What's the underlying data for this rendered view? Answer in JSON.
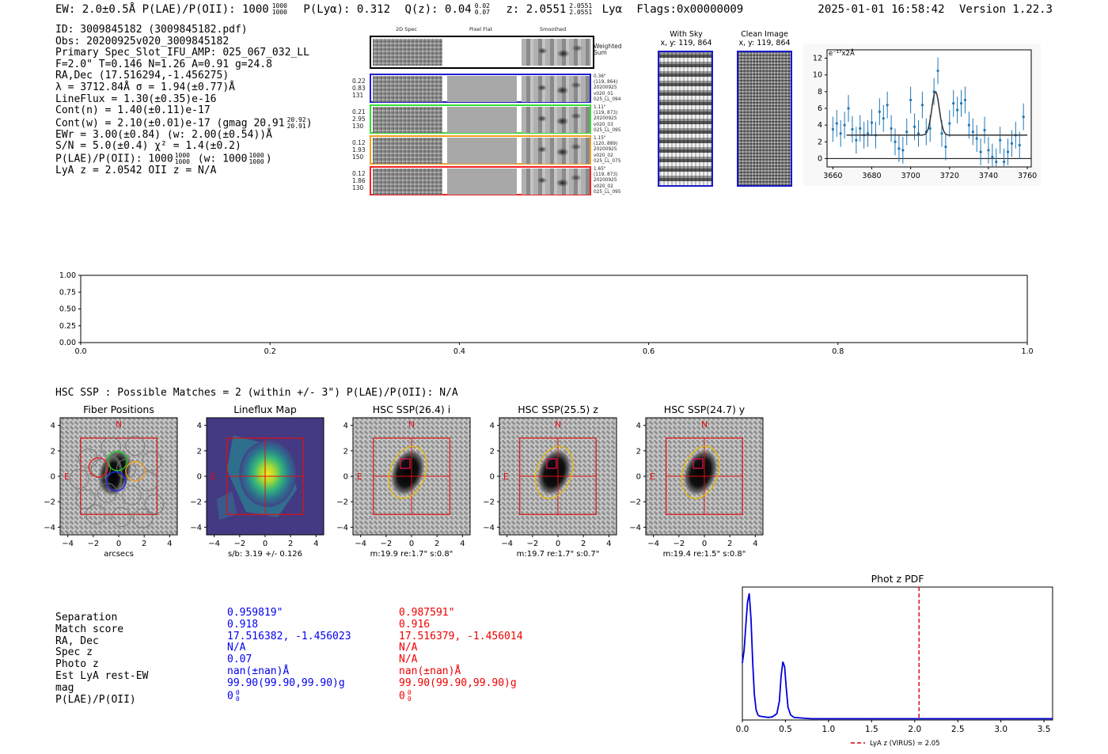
{
  "header": {
    "line": "EW: 2.0±0.5Å  P(LAE)/P(OII): 1000",
    "plae_hi": "1000",
    "plae_lo": "1000",
    "ply_label": "P(Lyα): 0.312",
    "qz_label": "Q(z): 0.04",
    "qz_hi": "0.02",
    "qz_lo": "0.07",
    "z_label": "z: 2.0551",
    "z_hi": "2.0551",
    "z_lo": "2.0551",
    "z_line": "Lyα",
    "flags": "Flags:0x00000009",
    "timestamp": "2025-01-01 16:58:42",
    "version": "Version 1.22.3"
  },
  "info": {
    "id": "ID: 3009845182 (3009845182.pdf)",
    "obs": "Obs: 20200925v020_3009845182",
    "slot": "Primary Spec_Slot_IFU_AMP: 025_067_032_LL",
    "fit": "F=2.0\"  T=0.146  N=1.26  A=0.91  g=24.8",
    "radec": "RA,Dec (17.516294,-1.456275)",
    "lambda": "λ = 3712.84Å  σ = 1.94(±0.77)Å",
    "lineflux": "LineFlux = 1.30(±0.35)e-16",
    "contn": "Cont(n) = 1.40(±0.11)e-17",
    "contw": "Cont(w) = 2.10(±0.01)e-17 (gmag 20.91",
    "contw_hi": "20.92",
    "contw_lo": "20.91",
    "contw_end": ")",
    "ewr": "EWr = 3.00(±0.84) (w: 2.00(±0.54))Å",
    "sn": "S/N = 5.0(±0.4)  χ² = 1.4(±0.2)",
    "plae": "P(LAE)/P(OII): 1000",
    "plae_hi": "1000",
    "plae_lo": "1000",
    "plae_w": " (w: 1000",
    "plae_w_hi": "1000",
    "plae_w_lo": "1000",
    "plae_end": ")",
    "lyaz": "LyA z = 2.0542  OII z = N/A"
  },
  "cutouts": {
    "col_2d": "2D Spec",
    "col_flat": "Pixel Flat",
    "col_smooth": "Smoothed",
    "weighted": "Weighted\nSum",
    "rows": [
      {
        "left": [
          "0.22",
          "0.83",
          "131"
        ],
        "right": [
          "0.36\"",
          "(119, 864)",
          "20200925",
          "v020_01",
          "025_LL_094"
        ],
        "color": "#1f1fcc"
      },
      {
        "left": [
          "0.21",
          "2.95",
          "130"
        ],
        "right": [
          "1.11\"",
          "(119, 873)",
          "20200925",
          "v020_03",
          "025_LL_095"
        ],
        "color": "#33dd33"
      },
      {
        "left": [
          "0.12",
          "1.93",
          "150"
        ],
        "right": [
          "1.15\"",
          "(120, 889)",
          "20200925",
          "v020_02",
          "025_LL_075"
        ],
        "color": "#f0a020"
      },
      {
        "left": [
          "0.12",
          "1.86",
          "130"
        ],
        "right": [
          "1.65\"",
          "(119, 873)",
          "20200925",
          "v020_02",
          "025_LL_095"
        ],
        "color": "#ee2222"
      }
    ]
  },
  "sky": {
    "title": "With Sky",
    "coords": "x, y: 119, 864"
  },
  "clean": {
    "title": "Clean Image",
    "coords": "x, y: 119, 864"
  },
  "spectrum": {
    "chart_data": {
      "type": "scatter",
      "ylabel": "e⁻¹⁷x2Å",
      "xlim": [
        3657,
        3762
      ],
      "ylim": [
        -1,
        13
      ],
      "xticks": [
        3660,
        3680,
        3700,
        3720,
        3740,
        3760
      ],
      "yticks": [
        0,
        2,
        4,
        6,
        8,
        10,
        12
      ],
      "x": [
        3660,
        3662,
        3664,
        3666,
        3668,
        3670,
        3672,
        3674,
        3676,
        3678,
        3680,
        3682,
        3684,
        3686,
        3688,
        3690,
        3692,
        3694,
        3696,
        3698,
        3700,
        3702,
        3704,
        3706,
        3708,
        3710,
        3712,
        3714,
        3716,
        3718,
        3720,
        3722,
        3724,
        3726,
        3728,
        3730,
        3732,
        3734,
        3736,
        3738,
        3740,
        3742,
        3744,
        3746,
        3748,
        3750,
        3752,
        3754,
        3756,
        3758
      ],
      "y": [
        3.5,
        4.2,
        3.0,
        4.0,
        6.0,
        3.5,
        2.2,
        3.6,
        2.8,
        3.0,
        4.3,
        2.8,
        5.6,
        4.8,
        6.4,
        3.6,
        2.0,
        1.2,
        1.0,
        3.2,
        7.0,
        3.8,
        3.0,
        6.4,
        3.2,
        3.6,
        8.0,
        10.5,
        3.0,
        1.4,
        4.2,
        6.6,
        5.8,
        6.6,
        7.0,
        4.0,
        3.2,
        2.4,
        0.8,
        3.4,
        1.0,
        0.2,
        -0.4,
        2.2,
        -0.4,
        0.8,
        1.8,
        2.8,
        1.6,
        5.0
      ],
      "err": [
        1.5,
        1.6,
        1.6,
        1.6,
        1.6,
        1.6,
        1.6,
        1.6,
        1.6,
        1.6,
        1.6,
        1.6,
        1.6,
        1.6,
        1.6,
        1.6,
        1.6,
        1.6,
        1.6,
        1.6,
        1.6,
        1.6,
        1.6,
        1.6,
        1.6,
        1.6,
        1.6,
        1.6,
        1.6,
        1.6,
        1.6,
        1.6,
        1.6,
        1.6,
        1.6,
        1.6,
        1.6,
        1.6,
        1.6,
        1.6,
        1.6,
        1.6,
        1.6,
        1.6,
        1.6,
        1.6,
        1.6,
        1.6,
        1.6,
        1.6
      ],
      "model": {
        "continuum": 2.8,
        "amp": 5.2,
        "center": 3712.8,
        "sigma": 1.94
      }
    }
  },
  "empty_axes": {
    "chart_data": {
      "type": "line",
      "xlim": [
        0,
        1
      ],
      "ylim": [
        0,
        1
      ],
      "xticks": [
        "0.0",
        "0.2",
        "0.4",
        "0.6",
        "0.8",
        "1.0"
      ],
      "yticks": [
        "0.00",
        "0.25",
        "0.50",
        "0.75",
        "1.00"
      ],
      "series": []
    }
  },
  "hsc": {
    "heading": "HSC SSP : Possible Matches = 2 (within +/- 3\")  P(LAE)/P(OII): N/A",
    "panels": [
      {
        "title": "Fiber Positions",
        "caption": "arcsecs",
        "kind": "fiber"
      },
      {
        "title": "Lineflux Map",
        "caption": "s/b: 3.19 +/- 0.126",
        "kind": "flux"
      },
      {
        "title": "HSC SSP(26.4) i",
        "caption": "m:19.9  re:1.7\"  s:0.8\"",
        "kind": "hsc"
      },
      {
        "title": "HSC SSP(25.5) z",
        "caption": "m:19.7  re:1.7\"  s:0.7\"",
        "kind": "hsc"
      },
      {
        "title": "HSC SSP(24.7) y",
        "caption": "m:19.4  re:1.5\"  s:0.8\"",
        "kind": "hsc"
      }
    ],
    "ticks": [
      "−4",
      "−2",
      "0",
      "2",
      "4"
    ],
    "north": "N",
    "east": "E"
  },
  "matches": {
    "labels": [
      "Separation",
      "Match score",
      "RA, Dec",
      "Spec z",
      "Photo z",
      "Est LyA rest-EW",
      "mag",
      "P(LAE)/P(OII)"
    ],
    "blue": [
      "0.959819\"",
      "0.918",
      "17.516382, -1.456023",
      "N/A",
      "0.07",
      "nan(±nan)Å",
      "99.90(99.90,99.90)g",
      "0"
    ],
    "red": [
      "0.987591\"",
      "0.916",
      "17.516379, -1.456014",
      "N/A",
      "N/A",
      "nan(±nan)Å",
      "99.90(99.90,99.90)g",
      "0"
    ],
    "frac_hi": "0",
    "frac_lo": "0",
    "blue_color": "#0000ee",
    "red_color": "#ee0000"
  },
  "photz": {
    "chart_data": {
      "type": "line",
      "title": "Phot z PDF",
      "xlim": [
        0,
        3.6
      ],
      "ylim": [
        0,
        1.05
      ],
      "xticks": [
        "0.0",
        "0.5",
        "1.0",
        "1.5",
        "2.0",
        "2.5",
        "3.0",
        "3.5"
      ],
      "x": [
        0.0,
        0.02,
        0.04,
        0.06,
        0.08,
        0.1,
        0.12,
        0.14,
        0.16,
        0.18,
        0.2,
        0.25,
        0.3,
        0.35,
        0.4,
        0.43,
        0.45,
        0.47,
        0.49,
        0.51,
        0.53,
        0.56,
        0.6,
        0.7,
        0.8,
        1.0,
        1.5,
        2.0,
        2.5,
        3.0,
        3.6
      ],
      "y": [
        0.45,
        0.55,
        0.75,
        0.93,
        1.0,
        0.8,
        0.45,
        0.2,
        0.08,
        0.04,
        0.03,
        0.025,
        0.02,
        0.025,
        0.05,
        0.15,
        0.35,
        0.46,
        0.42,
        0.25,
        0.1,
        0.04,
        0.02,
        0.015,
        0.01,
        0.01,
        0.01,
        0.01,
        0.01,
        0.01,
        0.01
      ],
      "vline": 2.05,
      "legend": "LyA z (VIRUS) = 2.05"
    }
  }
}
